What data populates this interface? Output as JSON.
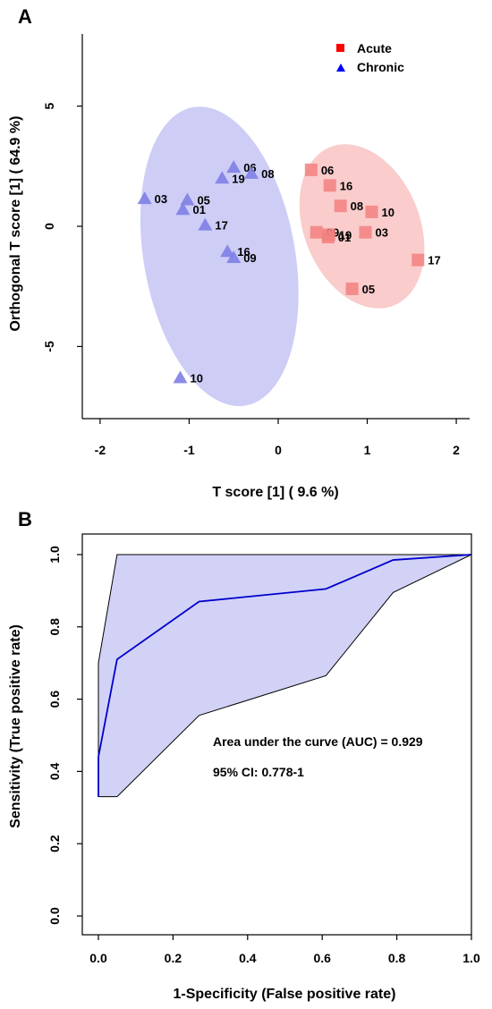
{
  "chart_data": [
    {
      "panel": "A",
      "type": "scatter",
      "xlabel": "T score [1] ( 9.6 %)",
      "ylabel": "Orthogonal T score [1] ( 64.9 %)",
      "xlim": [
        -2.2,
        2.15
      ],
      "ylim": [
        -8.0,
        8.0
      ],
      "xticks": [
        "-2",
        "-1",
        "0",
        "1",
        "2"
      ],
      "xtick_values": [
        -2,
        -1,
        0,
        1,
        2
      ],
      "yticks": [
        "-5",
        "0",
        "5"
      ],
      "ytick_values": [
        -5,
        0,
        5
      ],
      "legend": {
        "placement": "top-right"
      },
      "series": [
        {
          "name": "Acute",
          "marker": "square",
          "legend_color": "#ff0000",
          "color": "#f28080",
          "ellipse": {
            "center": [
              0.94,
              0.0
            ],
            "rx": 0.65,
            "ry": 3.55,
            "angle_deg": -22,
            "fill": "#f9c3c3"
          },
          "points": [
            {
              "label": "06",
              "x": 0.37,
              "y": 2.35
            },
            {
              "label": "16",
              "x": 0.58,
              "y": 1.7
            },
            {
              "label": "08",
              "x": 0.7,
              "y": 0.85
            },
            {
              "label": "10",
              "x": 1.05,
              "y": 0.6
            },
            {
              "label": "09",
              "x": 0.43,
              "y": -0.25
            },
            {
              "label": "19",
              "x": 0.57,
              "y": -0.35
            },
            {
              "label": "01",
              "x": 0.56,
              "y": -0.45
            },
            {
              "label": "03",
              "x": 0.98,
              "y": -0.25
            },
            {
              "label": "17",
              "x": 1.57,
              "y": -1.4
            },
            {
              "label": "05",
              "x": 0.83,
              "y": -2.6
            }
          ]
        },
        {
          "name": "Chronic",
          "marker": "triangle",
          "legend_color": "#0000ff",
          "color": "#8080e6",
          "ellipse": {
            "center": [
              -0.66,
              -1.25
            ],
            "rx": 0.85,
            "ry": 6.3,
            "angle_deg": -10,
            "fill": "#c4c4f5"
          },
          "points": [
            {
              "label": "06",
              "x": -0.5,
              "y": 2.45
            },
            {
              "label": "19",
              "x": -0.63,
              "y": 2.0
            },
            {
              "label": "08",
              "x": -0.3,
              "y": 2.2
            },
            {
              "label": "03",
              "x": -1.5,
              "y": 1.15
            },
            {
              "label": "05",
              "x": -1.02,
              "y": 1.1
            },
            {
              "label": "01",
              "x": -1.07,
              "y": 0.7
            },
            {
              "label": "17",
              "x": -0.82,
              "y": 0.05
            },
            {
              "label": "16",
              "x": -0.57,
              "y": -1.05
            },
            {
              "label": "09",
              "x": -0.5,
              "y": -1.3
            },
            {
              "label": "10",
              "x": -1.1,
              "y": -6.3
            }
          ]
        }
      ]
    },
    {
      "panel": "B",
      "type": "line",
      "xlabel": "1-Specificity (False positive rate)",
      "ylabel": "Sensitivity (True positive rate)",
      "xlim": [
        0,
        1
      ],
      "ylim": [
        0,
        1
      ],
      "xticks": [
        "0.0",
        "0.2",
        "0.4",
        "0.6",
        "0.8",
        "1.0"
      ],
      "xtick_values": [
        0,
        0.2,
        0.4,
        0.6,
        0.8,
        1.0
      ],
      "yticks": [
        "0.0",
        "0.2",
        "0.4",
        "0.6",
        "0.8",
        "1.0"
      ],
      "ytick_values": [
        0,
        0.2,
        0.4,
        0.6,
        0.8,
        1.0
      ],
      "roc_curve": {
        "color": "#0000cc",
        "x": [
          0.0,
          0.0,
          0.05,
          0.27,
          0.61,
          0.79,
          1.0
        ],
        "y": [
          0.33,
          0.44,
          0.71,
          0.87,
          0.905,
          0.985,
          1.0
        ]
      },
      "ci_band": {
        "fill": "#d2d2f7",
        "upper": {
          "x": [
            0.0,
            0.0,
            0.05,
            1.0
          ],
          "y": [
            0.33,
            0.7,
            1.0,
            1.0
          ]
        },
        "lower": {
          "x": [
            0.0,
            0.05,
            0.27,
            0.61,
            0.79,
            1.0
          ],
          "y": [
            0.33,
            0.33,
            0.555,
            0.665,
            0.895,
            1.0
          ]
        }
      },
      "annotations": {
        "auc": "Area under the curve (AUC) = 0.929",
        "ci": "95% CI: 0.778-1"
      }
    }
  ]
}
